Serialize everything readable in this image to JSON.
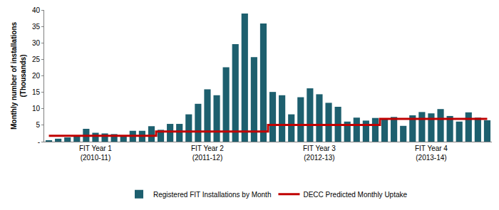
{
  "chart_data": {
    "type": "bar",
    "y_label": "Monthly number of installations\n(Thousands)",
    "categories": [
      null,
      null,
      null,
      null,
      null,
      "FIT Year 1\n(2010-11)",
      null,
      null,
      null,
      null,
      null,
      null,
      null,
      null,
      null,
      null,
      null,
      "FIT Year 2\n(2011-12)",
      null,
      null,
      null,
      null,
      null,
      null,
      null,
      null,
      null,
      null,
      null,
      "FIT Year 3\n(2012-13)",
      null,
      null,
      null,
      null,
      null,
      null,
      null,
      null,
      null,
      null,
      null,
      "FIT Year 4\n(2013-14)",
      null,
      null,
      null,
      null,
      null,
      null
    ],
    "series": [
      {
        "name": "Registered FIT Installations by Month",
        "type": "bar",
        "color": "#1d5f6e",
        "values": [
          0.3,
          0.9,
          1.3,
          1.7,
          3.9,
          2.7,
          2.5,
          2.3,
          1.7,
          3.3,
          3.3,
          4.7,
          3.6,
          5.4,
          5.4,
          8.3,
          11.5,
          15.9,
          14.1,
          22.6,
          29.6,
          38.9,
          25.7,
          35.9,
          15.1,
          14.1,
          8.3,
          13.5,
          16.2,
          14.4,
          11.8,
          10.6,
          6.1,
          7.3,
          6.4,
          7.2,
          7.1,
          7.5,
          4.8,
          8.0,
          9.0,
          8.6,
          9.9,
          7.8,
          6.1,
          8.9,
          7.3,
          6.5
        ]
      },
      {
        "name": "DECC Predicted Monthly Uptake",
        "type": "line",
        "color": "#c00000",
        "line_style": "step",
        "values": [
          1.8,
          1.8,
          1.8,
          1.8,
          1.8,
          1.8,
          1.8,
          1.8,
          1.8,
          1.8,
          1.8,
          1.8,
          3.1,
          3.1,
          3.1,
          3.1,
          3.1,
          3.1,
          3.1,
          3.1,
          3.1,
          3.1,
          3.1,
          3.1,
          5.1,
          5.1,
          5.1,
          5.1,
          5.1,
          5.1,
          5.1,
          5.1,
          5.1,
          5.1,
          5.1,
          5.1,
          6.9,
          6.9,
          6.9,
          6.9,
          6.9,
          6.9,
          6.9,
          6.9,
          6.9,
          6.9,
          6.9,
          6.9
        ]
      }
    ],
    "ylim": [
      0,
      40
    ],
    "yticks": [
      {
        "value": 0,
        "label": "-"
      },
      5,
      10,
      15,
      20,
      25,
      30,
      35,
      40
    ],
    "grid": false,
    "legend": "bottom"
  }
}
